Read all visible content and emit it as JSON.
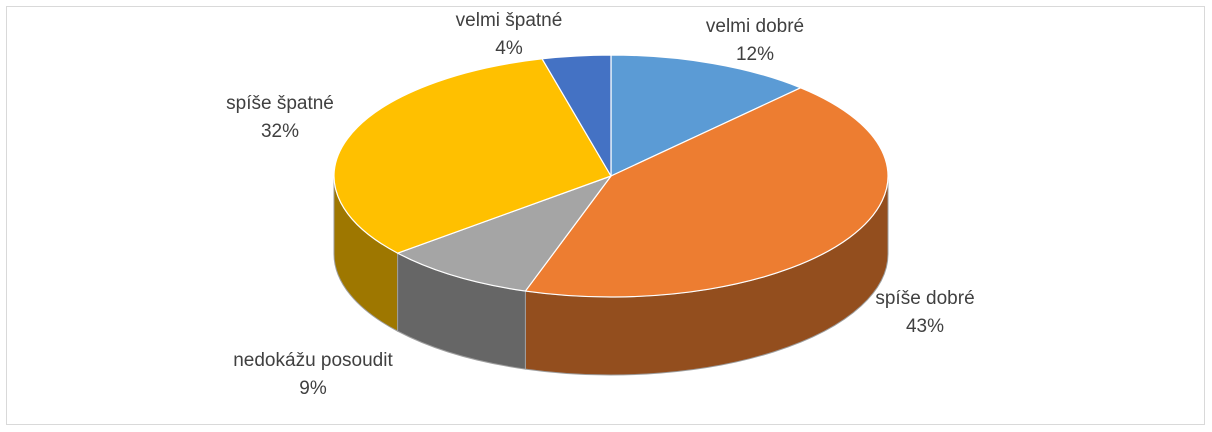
{
  "chart_data": {
    "type": "pie",
    "categories": [
      "velmi dobré",
      "spíše dobré",
      "nedokážu posoudit",
      "spíše špatné",
      "velmi špatné"
    ],
    "values": [
      12,
      43,
      9,
      32,
      4
    ],
    "value_labels": [
      "12%",
      "43%",
      "9%",
      "32%",
      "4%"
    ],
    "colors": [
      "#5b9bd5",
      "#ed7d31",
      "#a5a5a5",
      "#ffc000",
      "#4472c4"
    ]
  }
}
